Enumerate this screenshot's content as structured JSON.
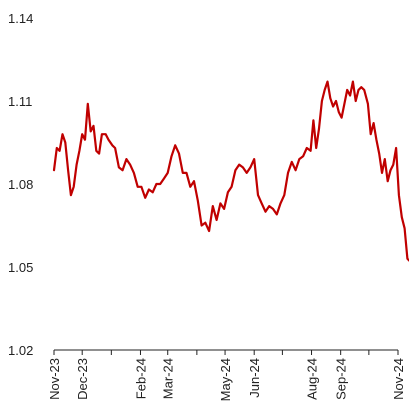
{
  "chart_data": {
    "type": "line",
    "title": "",
    "xlabel": "",
    "ylabel": "",
    "ylim": [
      1.02,
      1.14
    ],
    "yticks": [
      1.02,
      1.05,
      1.08,
      1.11,
      1.14
    ],
    "ytick_labels": [
      "1.02",
      "1.05",
      "1.08",
      "1.11",
      "1.14"
    ],
    "xticks": [
      "2023-11-01",
      "2023-12-01",
      "2024-01-01",
      "2024-02-01",
      "2024-03-01",
      "2024-04-01",
      "2024-05-01",
      "2024-06-01",
      "2024-07-01",
      "2024-08-01",
      "2024-09-01",
      "2024-10-01",
      "2024-11-01"
    ],
    "xtick_labels": [
      "Nov-23",
      "Dec-23",
      "Feb-24",
      "Mar-24",
      "May-24",
      "Jun-24",
      "Aug-24",
      "Sep-24",
      "Nov-24"
    ],
    "xtick_label_dates": [
      "2023-11-01",
      "2023-12-01",
      "2024-02-01",
      "2024-03-01",
      "2024-05-01",
      "2024-06-01",
      "2024-08-01",
      "2024-09-01",
      "2024-11-01"
    ],
    "grid": false,
    "series": [
      {
        "color": "#c00000",
        "x": [
          "2023-11-01",
          "2023-11-04",
          "2023-11-07",
          "2023-11-10",
          "2023-11-13",
          "2023-11-16",
          "2023-11-19",
          "2023-11-22",
          "2023-11-25",
          "2023-11-28",
          "2023-12-01",
          "2023-12-04",
          "2023-12-07",
          "2023-12-10",
          "2023-12-13",
          "2023-12-16",
          "2023-12-19",
          "2023-12-22",
          "2023-12-26",
          "2023-12-29",
          "2024-01-02",
          "2024-01-05",
          "2024-01-09",
          "2024-01-13",
          "2024-01-17",
          "2024-01-21",
          "2024-01-25",
          "2024-01-29",
          "2024-02-02",
          "2024-02-06",
          "2024-02-10",
          "2024-02-14",
          "2024-02-18",
          "2024-02-22",
          "2024-02-26",
          "2024-03-01",
          "2024-03-05",
          "2024-03-09",
          "2024-03-13",
          "2024-03-17",
          "2024-03-21",
          "2024-03-25",
          "2024-03-29",
          "2024-04-02",
          "2024-04-06",
          "2024-04-10",
          "2024-04-14",
          "2024-04-18",
          "2024-04-22",
          "2024-04-26",
          "2024-04-30",
          "2024-05-04",
          "2024-05-08",
          "2024-05-12",
          "2024-05-16",
          "2024-05-20",
          "2024-05-24",
          "2024-05-28",
          "2024-06-01",
          "2024-06-05",
          "2024-06-09",
          "2024-06-13",
          "2024-06-17",
          "2024-06-21",
          "2024-06-25",
          "2024-06-29",
          "2024-07-03",
          "2024-07-07",
          "2024-07-11",
          "2024-07-15",
          "2024-07-19",
          "2024-07-23",
          "2024-07-27",
          "2024-07-31",
          "2024-08-03",
          "2024-08-06",
          "2024-08-09",
          "2024-08-12",
          "2024-08-15",
          "2024-08-18",
          "2024-08-21",
          "2024-08-24",
          "2024-08-27",
          "2024-08-30",
          "2024-09-02",
          "2024-09-05",
          "2024-09-08",
          "2024-09-11",
          "2024-09-14",
          "2024-09-17",
          "2024-09-20",
          "2024-09-23",
          "2024-09-26",
          "2024-09-30",
          "2024-10-03",
          "2024-10-06",
          "2024-10-09",
          "2024-10-12",
          "2024-10-15",
          "2024-10-18",
          "2024-10-21",
          "2024-10-24",
          "2024-10-27",
          "2024-10-30",
          "2024-11-02",
          "2024-11-05",
          "2024-11-08",
          "2024-11-11",
          "2024-11-14"
        ],
        "y": [
          1.085,
          1.093,
          1.092,
          1.098,
          1.095,
          1.085,
          1.076,
          1.079,
          1.087,
          1.092,
          1.098,
          1.096,
          1.109,
          1.099,
          1.101,
          1.092,
          1.091,
          1.098,
          1.098,
          1.096,
          1.094,
          1.093,
          1.086,
          1.085,
          1.089,
          1.087,
          1.084,
          1.079,
          1.079,
          1.075,
          1.078,
          1.077,
          1.08,
          1.08,
          1.082,
          1.084,
          1.09,
          1.094,
          1.091,
          1.084,
          1.084,
          1.079,
          1.081,
          1.074,
          1.065,
          1.066,
          1.063,
          1.072,
          1.067,
          1.073,
          1.071,
          1.077,
          1.079,
          1.085,
          1.087,
          1.086,
          1.084,
          1.086,
          1.089,
          1.076,
          1.073,
          1.07,
          1.072,
          1.071,
          1.069,
          1.073,
          1.076,
          1.084,
          1.088,
          1.085,
          1.089,
          1.09,
          1.093,
          1.092,
          1.103,
          1.093,
          1.1,
          1.11,
          1.114,
          1.117,
          1.111,
          1.108,
          1.11,
          1.106,
          1.104,
          1.109,
          1.114,
          1.112,
          1.117,
          1.11,
          1.114,
          1.115,
          1.114,
          1.109,
          1.098,
          1.102,
          1.096,
          1.091,
          1.084,
          1.089,
          1.081,
          1.085,
          1.087,
          1.093,
          1.076,
          1.068,
          1.064,
          1.053,
          1.052
        ]
      }
    ]
  }
}
